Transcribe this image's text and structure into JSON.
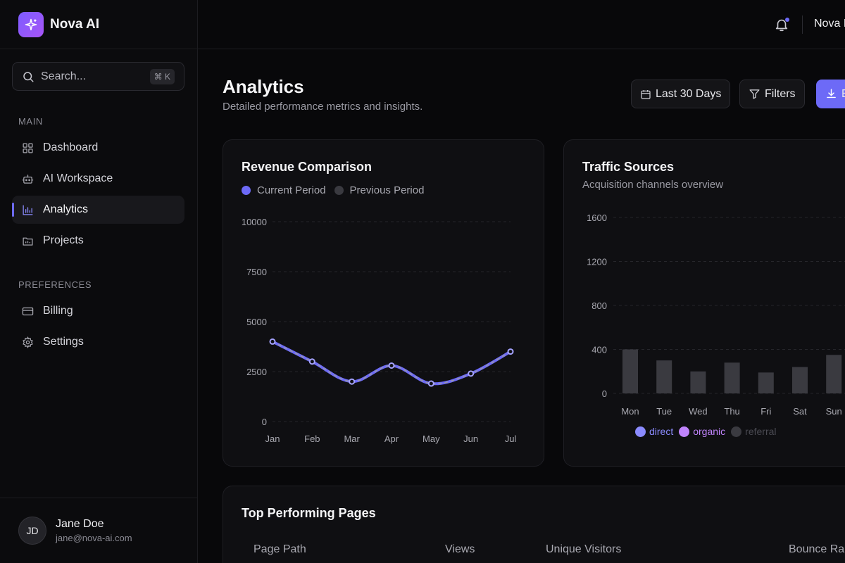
{
  "brand": {
    "name": "Nova AI",
    "icon": "sparkle-icon",
    "colors": {
      "accent": "#6d6af7",
      "logo_from": "#7c5cff",
      "logo_to": "#a855f7"
    }
  },
  "search": {
    "placeholder": "Search...",
    "shortcut": "⌘ K"
  },
  "sidebar": {
    "sections": [
      {
        "label": "MAIN",
        "items": [
          {
            "label": "Dashboard",
            "icon": "grid-icon"
          },
          {
            "label": "AI Workspace",
            "icon": "bot-icon"
          },
          {
            "label": "Analytics",
            "icon": "bar-chart-icon",
            "active": true
          },
          {
            "label": "Projects",
            "icon": "folder-icon"
          }
        ]
      },
      {
        "label": "PREFERENCES",
        "items": [
          {
            "label": "Billing",
            "icon": "credit-card-icon"
          },
          {
            "label": "Settings",
            "icon": "gear-icon"
          }
        ]
      }
    ]
  },
  "user": {
    "initials": "JD",
    "name": "Jane Doe",
    "email": "jane@nova-ai.com"
  },
  "topbar": {
    "user_label": "Nova I"
  },
  "header": {
    "title": "Analytics",
    "subtitle": "Detailed performance metrics and insights.",
    "date_range": "Last 30 Days",
    "filters": "Filters",
    "export": "E"
  },
  "revenue_card": {
    "title": "Revenue Comparison",
    "legend": [
      {
        "label": "Current Period",
        "color": "#6d6af7"
      },
      {
        "label": "Previous Period",
        "color": "#3a3a40"
      }
    ]
  },
  "traffic_card": {
    "title": "Traffic Sources",
    "subtitle": "Acquisition channels overview",
    "legend": [
      {
        "label": "direct",
        "color": "#8b8bff"
      },
      {
        "label": "organic",
        "color": "#c084fc"
      },
      {
        "label": "referral",
        "color": "#3a3a40"
      }
    ]
  },
  "pages_card": {
    "title": "Top Performing Pages",
    "columns": [
      "Page Path",
      "Views",
      "Unique Visitors",
      "Bounce Ra"
    ]
  },
  "chart_data": [
    {
      "type": "line",
      "title": "Revenue Comparison",
      "categories": [
        "Jan",
        "Feb",
        "Mar",
        "Apr",
        "May",
        "Jun",
        "Jul"
      ],
      "series": [
        {
          "name": "Current Period",
          "values": [
            4000,
            3000,
            2000,
            2800,
            1900,
            2400,
            3500
          ]
        },
        {
          "name": "Previous Period",
          "values": [
            4000,
            3000,
            2000,
            2800,
            1900,
            2400,
            3500
          ]
        }
      ],
      "yticks": [
        "10000",
        "7500",
        "5000",
        "2500",
        "0"
      ],
      "ylim": [
        0,
        10000
      ],
      "grid": true,
      "legend": "top-left"
    },
    {
      "type": "bar",
      "title": "Traffic Sources",
      "categories": [
        "Mon",
        "Tue",
        "Wed",
        "Thu",
        "Fri",
        "Sat",
        "Sun"
      ],
      "series": [
        {
          "name": "direct",
          "values": [
            0,
            0,
            0,
            0,
            0,
            0,
            0
          ]
        },
        {
          "name": "organic",
          "values": [
            0,
            0,
            0,
            0,
            0,
            0,
            0
          ]
        },
        {
          "name": "referral",
          "values": [
            400,
            300,
            200,
            280,
            190,
            240,
            350
          ]
        }
      ],
      "yticks": [
        "1600",
        "1200",
        "800",
        "400",
        "0"
      ],
      "ylim": [
        0,
        1600
      ],
      "grid": true,
      "legend": "bottom"
    }
  ]
}
